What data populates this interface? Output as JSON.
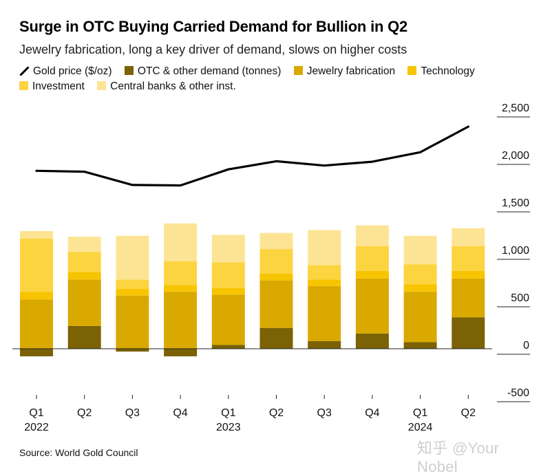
{
  "header": {
    "title": "Surge in OTC Buying Carried Demand for Bullion in Q2",
    "subtitle": "Jewelry fabrication, long a key driver of demand, slows on higher costs"
  },
  "legend": [
    {
      "label": "Gold price ($/oz)",
      "color": "#000000",
      "kind": "line"
    },
    {
      "label": "OTC & other demand (tonnes)",
      "color": "#7a6205",
      "kind": "box"
    },
    {
      "label": "Jewelry fabrication",
      "color": "#d9a900",
      "kind": "box"
    },
    {
      "label": "Technology",
      "color": "#f7c400",
      "kind": "box"
    },
    {
      "label": "Investment",
      "color": "#fcd43f",
      "kind": "box"
    },
    {
      "label": "Central banks & other inst.",
      "color": "#fde494",
      "kind": "box"
    }
  ],
  "source": "Source: World Gold Council",
  "watermark": "知乎 @Your Nobel",
  "chart_data": {
    "type": "bar",
    "stacked": true,
    "categories": [
      "Q1",
      "Q2",
      "Q3",
      "Q4",
      "Q1",
      "Q2",
      "Q3",
      "Q4",
      "Q1",
      "Q2"
    ],
    "year_labels": [
      {
        "label": "2022",
        "index": 0
      },
      {
        "label": "2023",
        "index": 4
      },
      {
        "label": "2024",
        "index": 8
      }
    ],
    "series": [
      {
        "name": "OTC & other demand (tonnes)",
        "color": "#7a6205",
        "values": [
          -80,
          240,
          -30,
          -80,
          40,
          220,
          80,
          160,
          70,
          330
        ]
      },
      {
        "name": "Jewelry fabrication",
        "color": "#d9a900",
        "values": [
          520,
          490,
          560,
          600,
          530,
          500,
          580,
          580,
          530,
          410
        ]
      },
      {
        "name": "Technology",
        "color": "#f7c400",
        "values": [
          80,
          80,
          70,
          70,
          70,
          70,
          70,
          80,
          80,
          80
        ]
      },
      {
        "name": "Investment",
        "color": "#fcd43f",
        "values": [
          560,
          210,
          100,
          250,
          270,
          260,
          150,
          260,
          210,
          260
        ]
      },
      {
        "name": "Central banks & other inst.",
        "color": "#fde494",
        "values": [
          80,
          160,
          460,
          400,
          290,
          170,
          370,
          220,
          300,
          190
        ]
      }
    ],
    "line_series": {
      "name": "Gold price ($/oz)",
      "color": "#000000",
      "values": [
        1875,
        1865,
        1725,
        1720,
        1890,
        1975,
        1930,
        1970,
        2070,
        2340
      ]
    },
    "yaxis": {
      "ticks": [
        -500,
        0,
        500,
        1000,
        1500,
        2000,
        2500
      ],
      "tick_labels": [
        "-500",
        "0",
        "500",
        "1,000",
        "1,500",
        "2,000",
        "2,500"
      ],
      "range": [
        -500,
        2500
      ]
    },
    "grid": false,
    "legend_position": "top"
  }
}
